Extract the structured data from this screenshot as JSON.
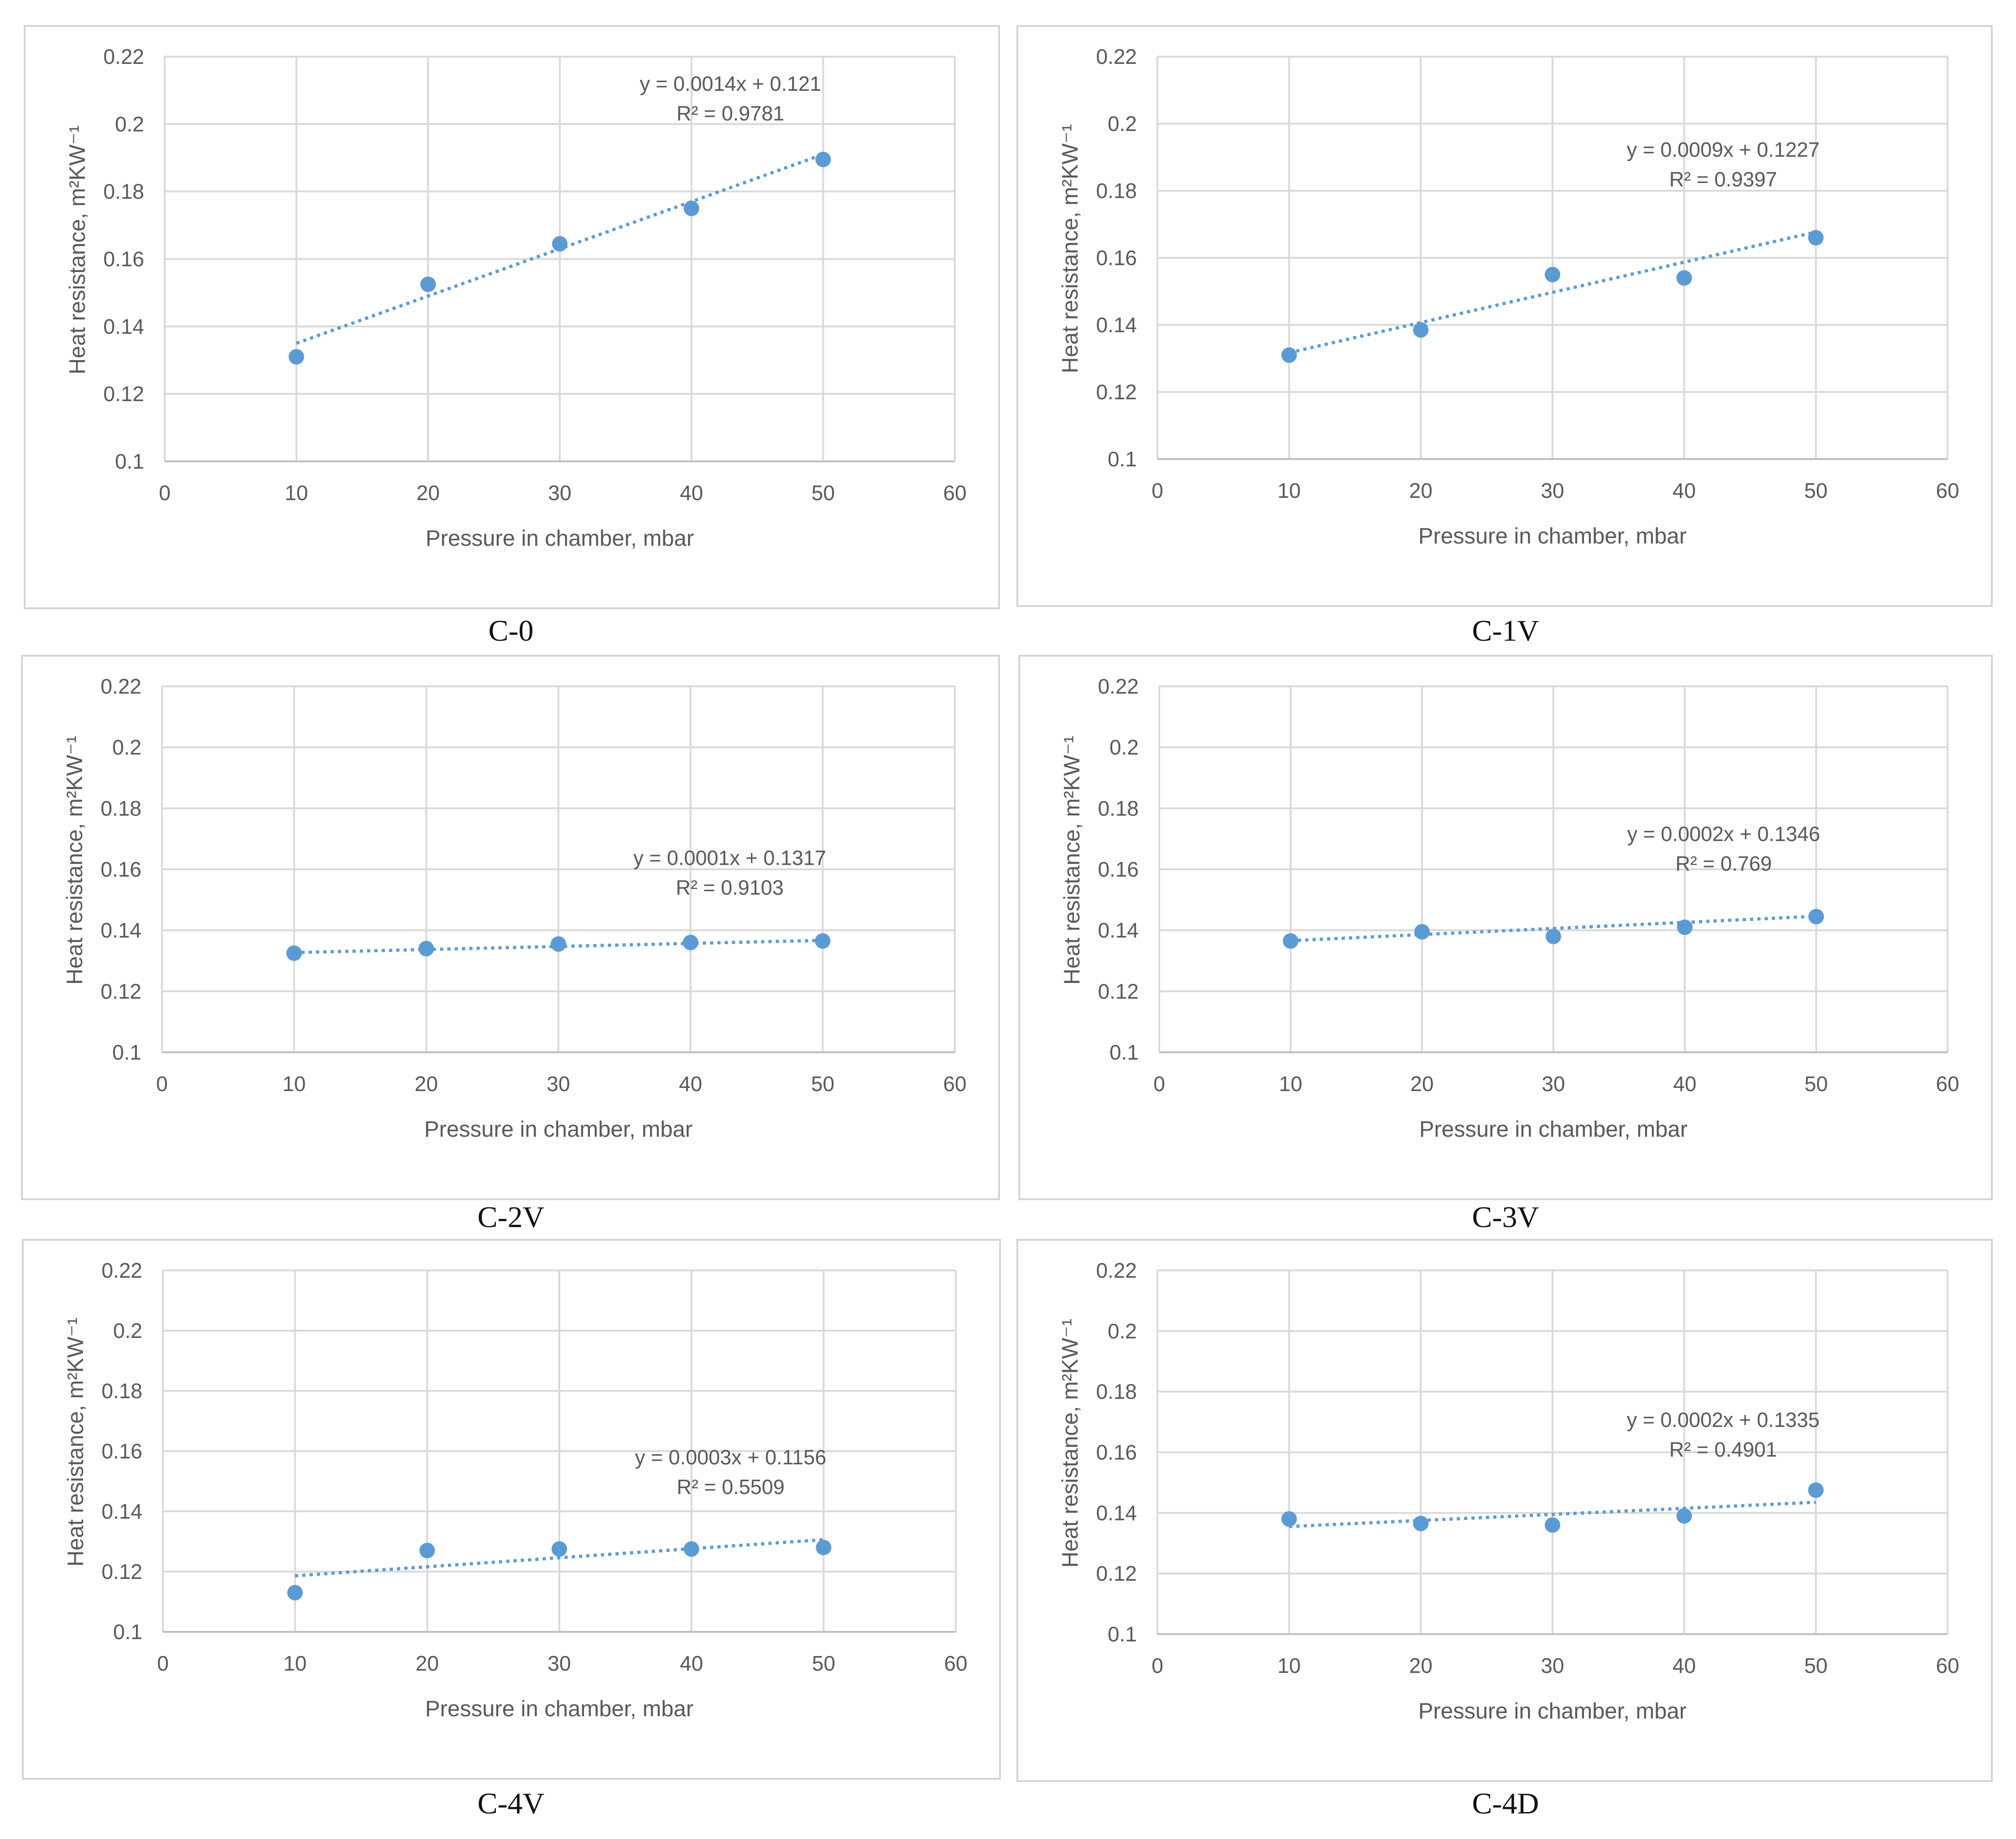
{
  "figure": {
    "colors": {
      "marker": "#5b9bd5",
      "trendline": "#5b9bd5",
      "grid": "#d9d9d9",
      "axis_text": "#595959",
      "frame": "#d4d4d4"
    },
    "panels": [
      {
        "caption": "C-0",
        "chart_data": {
          "type": "scatter",
          "x": [
            10,
            20,
            30,
            40,
            50
          ],
          "y": [
            0.131,
            0.1525,
            0.1645,
            0.175,
            0.1895
          ],
          "xlabel": "Pressure in chamber, mbar",
          "ylabel": "Heat resistance, m²KW⁻¹",
          "xlim": [
            0,
            60
          ],
          "ylim": [
            0.1,
            0.22
          ],
          "xticks": [
            "0",
            "10",
            "20",
            "30",
            "40",
            "50",
            "60"
          ],
          "yticks": [
            "0.1",
            "0.12",
            "0.14",
            "0.16",
            "0.18",
            "0.2",
            "0.22"
          ],
          "trendline": {
            "slope": 0.0014,
            "intercept": 0.121,
            "equation": "y = 0.0014x + 0.121",
            "r2": "R² = 0.9781"
          },
          "grid": true
        }
      },
      {
        "caption": "C-1V",
        "chart_data": {
          "type": "scatter",
          "x": [
            10,
            20,
            30,
            40,
            50
          ],
          "y": [
            0.131,
            0.1385,
            0.155,
            0.154,
            0.166
          ],
          "xlabel": "Pressure in chamber, mbar",
          "ylabel": "Heat resistance, m²KW⁻¹",
          "xlim": [
            0,
            60
          ],
          "ylim": [
            0.1,
            0.22
          ],
          "xticks": [
            "0",
            "10",
            "20",
            "30",
            "40",
            "50",
            "60"
          ],
          "yticks": [
            "0.1",
            "0.12",
            "0.14",
            "0.16",
            "0.18",
            "0.2",
            "0.22"
          ],
          "trendline": {
            "slope": 0.0009,
            "intercept": 0.1227,
            "equation": "y = 0.0009x + 0.1227",
            "r2": "R² = 0.9397"
          },
          "grid": true
        }
      },
      {
        "caption": "C-2V",
        "chart_data": {
          "type": "scatter",
          "x": [
            10,
            20,
            30,
            40,
            50
          ],
          "y": [
            0.1325,
            0.134,
            0.1355,
            0.136,
            0.1365
          ],
          "xlabel": "Pressure in chamber, mbar",
          "ylabel": "Heat resistance, m²KW⁻¹",
          "xlim": [
            0,
            60
          ],
          "ylim": [
            0.1,
            0.22
          ],
          "xticks": [
            "0",
            "10",
            "20",
            "30",
            "40",
            "50",
            "60"
          ],
          "yticks": [
            "0.1",
            "0.12",
            "0.14",
            "0.16",
            "0.18",
            "0.2",
            "0.22"
          ],
          "trendline": {
            "slope": 0.0001,
            "intercept": 0.1317,
            "equation": "y = 0.0001x + 0.1317",
            "r2": "R² = 0.9103"
          },
          "grid": true
        }
      },
      {
        "caption": "C-3V",
        "chart_data": {
          "type": "scatter",
          "x": [
            10,
            20,
            30,
            40,
            50
          ],
          "y": [
            0.1365,
            0.1395,
            0.138,
            0.141,
            0.1445
          ],
          "xlabel": "Pressure in chamber, mbar",
          "ylabel": "Heat resistance, m²KW⁻¹",
          "xlim": [
            0,
            60
          ],
          "ylim": [
            0.1,
            0.22
          ],
          "xticks": [
            "0",
            "10",
            "20",
            "30",
            "40",
            "50",
            "60"
          ],
          "yticks": [
            "0.1",
            "0.12",
            "0.14",
            "0.16",
            "0.18",
            "0.2",
            "0.22"
          ],
          "trendline": {
            "slope": 0.0002,
            "intercept": 0.1346,
            "equation": "y = 0.0002x + 0.1346",
            "r2": "R² = 0.769"
          },
          "grid": true
        }
      },
      {
        "caption": "C-4V",
        "chart_data": {
          "type": "scatter",
          "x": [
            10,
            20,
            30,
            40,
            50
          ],
          "y": [
            0.113,
            0.127,
            0.1275,
            0.1275,
            0.128
          ],
          "xlabel": "Pressure in chamber, mbar",
          "ylabel": "Heat resistance, m²KW⁻¹",
          "xlim": [
            0,
            60
          ],
          "ylim": [
            0.1,
            0.22
          ],
          "xticks": [
            "0",
            "10",
            "20",
            "30",
            "40",
            "50",
            "60"
          ],
          "yticks": [
            "0.1",
            "0.12",
            "0.14",
            "0.16",
            "0.18",
            "0.2",
            "0.22"
          ],
          "trendline": {
            "slope": 0.0003,
            "intercept": 0.1156,
            "equation": "y = 0.0003x + 0.1156",
            "r2": "R² = 0.5509"
          },
          "grid": true
        }
      },
      {
        "caption": "C-4D",
        "chart_data": {
          "type": "scatter",
          "x": [
            10,
            20,
            30,
            40,
            50
          ],
          "y": [
            0.138,
            0.1365,
            0.136,
            0.139,
            0.1475
          ],
          "xlabel": "Pressure in chamber, mbar",
          "ylabel": "Heat resistance, m²KW⁻¹",
          "xlim": [
            0,
            60
          ],
          "ylim": [
            0.1,
            0.22
          ],
          "xticks": [
            "0",
            "10",
            "20",
            "30",
            "40",
            "50",
            "60"
          ],
          "yticks": [
            "0.1",
            "0.12",
            "0.14",
            "0.16",
            "0.18",
            "0.2",
            "0.22"
          ],
          "trendline": {
            "slope": 0.0002,
            "intercept": 0.1335,
            "equation": "y = 0.0002x + 0.1335",
            "r2": "R² = 0.4901"
          },
          "grid": true
        }
      }
    ]
  }
}
